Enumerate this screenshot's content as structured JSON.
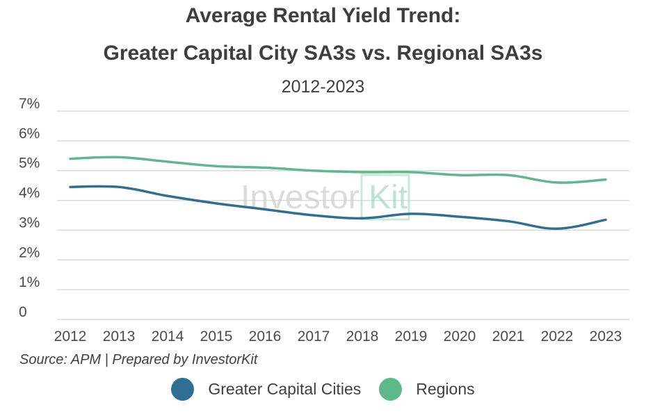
{
  "chart_data": {
    "type": "line",
    "title_line1": "Average Rental Yield Trend:",
    "title_line2": "Greater Capital City SA3s vs. Regional SA3s",
    "subtitle": "2012-2023",
    "x": [
      "2012",
      "2013",
      "2014",
      "2015",
      "2016",
      "2017",
      "2018",
      "2019",
      "2020",
      "2021",
      "2022",
      "2023"
    ],
    "series": [
      {
        "name": "Greater Capital Cities",
        "color": "#2e6f92",
        "values": [
          4.45,
          4.45,
          4.15,
          3.9,
          3.7,
          3.5,
          3.4,
          3.55,
          3.45,
          3.3,
          3.05,
          3.35
        ]
      },
      {
        "name": "Regions",
        "color": "#5db98a",
        "values": [
          5.4,
          5.45,
          5.3,
          5.15,
          5.1,
          5.0,
          4.95,
          4.95,
          4.85,
          4.85,
          4.6,
          4.7
        ]
      }
    ],
    "y_ticks": [
      "0",
      "1%",
      "2%",
      "3%",
      "4%",
      "5%",
      "6%",
      "7%"
    ],
    "ylim": [
      0,
      7
    ],
    "grid": true,
    "legend": "bottom",
    "watermark": {
      "text_part1": "Investor",
      "text_part2": "Kit"
    }
  },
  "source_note": "Source: APM | Prepared by InvestorKit"
}
